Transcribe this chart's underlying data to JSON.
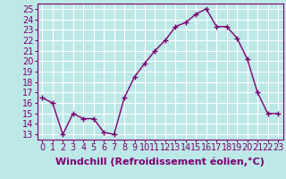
{
  "x": [
    0,
    1,
    2,
    3,
    4,
    5,
    6,
    7,
    8,
    9,
    10,
    11,
    12,
    13,
    14,
    15,
    16,
    17,
    18,
    19,
    20,
    21,
    22,
    23
  ],
  "y": [
    16.5,
    16.0,
    13.0,
    15.0,
    14.5,
    14.5,
    13.2,
    13.0,
    16.5,
    18.5,
    19.8,
    21.0,
    22.0,
    23.3,
    23.7,
    24.5,
    25.0,
    23.3,
    23.3,
    22.2,
    20.2,
    17.0,
    15.0,
    15.0
  ],
  "line_color": "#7B0070",
  "marker": "+",
  "bg_color": "#bde8e8",
  "grid_color": "#ffffff",
  "xlabel": "Windchill (Refroidissement éolien,°C)",
  "ylabel_ticks": [
    13,
    14,
    15,
    16,
    17,
    18,
    19,
    20,
    21,
    22,
    23,
    24,
    25
  ],
  "xlim": [
    -0.5,
    23.5
  ],
  "ylim": [
    12.5,
    25.5
  ],
  "tick_fontsize": 7,
  "xlabel_fontsize": 8,
  "line_width": 1.0,
  "marker_size": 4
}
